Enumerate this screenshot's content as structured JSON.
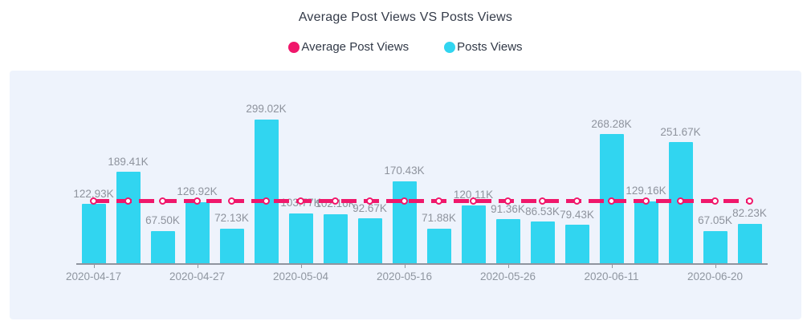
{
  "chart_data": {
    "type": "bar",
    "title": "Average Post Views VS Posts Views",
    "legend": [
      {
        "label": "Average Post Views",
        "series_type": "line",
        "color": "#f0176b"
      },
      {
        "label": "Posts Views",
        "series_type": "bar",
        "color": "#31d5f0"
      }
    ],
    "unit": "K = thousands of views",
    "bars": {
      "name": "Posts Views",
      "values_k": [
        122.93,
        189.41,
        67.5,
        126.92,
        72.13,
        299.02,
        103.77,
        102.16,
        92.67,
        170.43,
        71.88,
        120.11,
        91.36,
        86.53,
        79.43,
        268.28,
        129.16,
        251.67,
        67.05,
        82.23
      ],
      "labels": [
        "122.93K",
        "189.41K",
        "67.50K",
        "126.92K",
        "72.13K",
        "299.02K",
        "103.77K",
        "102.16K",
        "92.67K",
        "170.43K",
        "71.88K",
        "120.11K",
        "91.36K",
        "86.53K",
        "79.43K",
        "268.28K",
        "129.16K",
        "251.67K",
        "67.05K",
        "82.23K"
      ]
    },
    "average_line": {
      "name": "Average Post Views",
      "value_k": 129.73,
      "estimated_from_position": true,
      "style": "dashed horizontal line with hollow circle markers at each category"
    },
    "x_ticks": [
      {
        "index": 0,
        "label": "2020-04-17"
      },
      {
        "index": 3,
        "label": "2020-04-27"
      },
      {
        "index": 6,
        "label": "2020-05-04"
      },
      {
        "index": 9,
        "label": "2020-05-16"
      },
      {
        "index": 12,
        "label": "2020-05-26"
      },
      {
        "index": 15,
        "label": "2020-06-11"
      },
      {
        "index": 18,
        "label": "2020-06-20"
      }
    ],
    "y_axis": {
      "visible": false,
      "max_k": 400
    },
    "grid": false,
    "legend_position": "top-center",
    "colors": {
      "bar": "#31d5f0",
      "line": "#f0176b",
      "panel_bg": "#eef3fc",
      "value_label": "#8e939d",
      "axis": "#8f959f",
      "axis_label": "#8f96a0",
      "title": "#343b49",
      "legend_text": "#313947"
    }
  }
}
